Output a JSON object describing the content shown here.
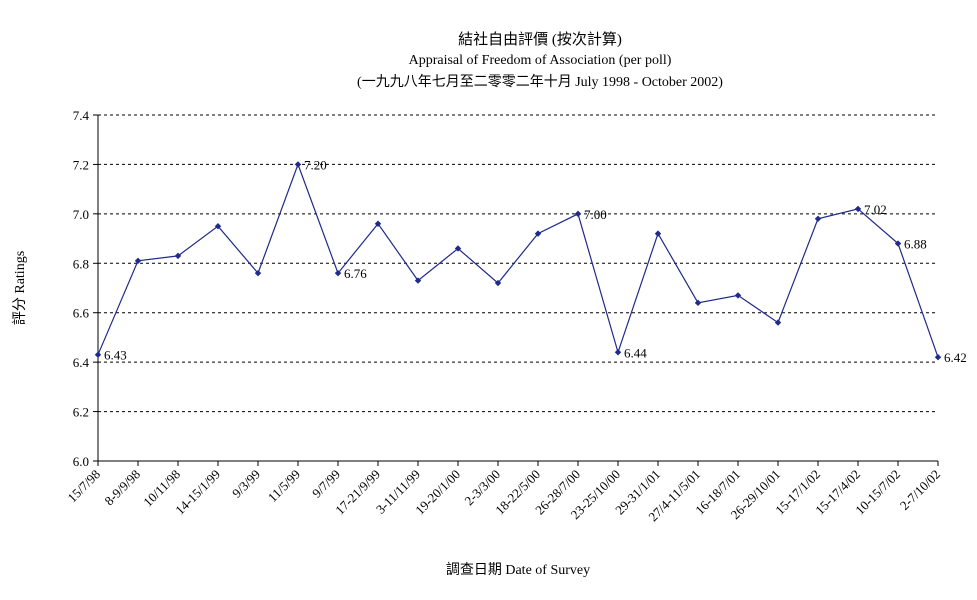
{
  "chart_data": {
    "type": "line",
    "title": "結社自由評價 (按次計算)",
    "subtitle": "Appraisal of Freedom of Association (per poll)",
    "subtitle2": "(一九九八年七月至二零零二年十月 July 1998 - October 2002)",
    "xlabel": "調查日期 Date of Survey",
    "ylabel": "評分 Ratings",
    "ylim": [
      6.0,
      7.4
    ],
    "yticks": [
      "6.0",
      "6.2",
      "6.4",
      "6.6",
      "6.8",
      "7.0",
      "7.2",
      "7.4"
    ],
    "grid": true,
    "categories": [
      "15/7/98",
      "8-9/9/98",
      "10/11/98",
      "14-15/1/99",
      "9/3/99",
      "11/5/99",
      "9/7/99",
      "17-21/9/99",
      "3-11/11/99",
      "19-20/1/00",
      "2-3/3/00",
      "18-22/5/00",
      "26-28/7/00",
      "23-25/10/00",
      "29-31/1/01",
      "27/4-11/5/01",
      "16-18/7/01",
      "26-29/10/01",
      "15-17/1/02",
      "15-17/4/02",
      "10-15/7/02",
      "2-7/10/02"
    ],
    "values": [
      6.43,
      6.81,
      6.83,
      6.95,
      6.76,
      7.2,
      6.76,
      6.96,
      6.73,
      6.86,
      6.72,
      6.92,
      7.0,
      6.44,
      6.92,
      6.64,
      6.67,
      6.56,
      6.98,
      7.02,
      6.88,
      6.42
    ],
    "data_labels": [
      {
        "index": 0,
        "text": "6.43"
      },
      {
        "index": 5,
        "text": "7.20"
      },
      {
        "index": 6,
        "text": "6.76"
      },
      {
        "index": 12,
        "text": "7.00"
      },
      {
        "index": 13,
        "text": "6.44"
      },
      {
        "index": 19,
        "text": "7.02"
      },
      {
        "index": 20,
        "text": "6.88"
      },
      {
        "index": 21,
        "text": "6.42"
      }
    ]
  }
}
